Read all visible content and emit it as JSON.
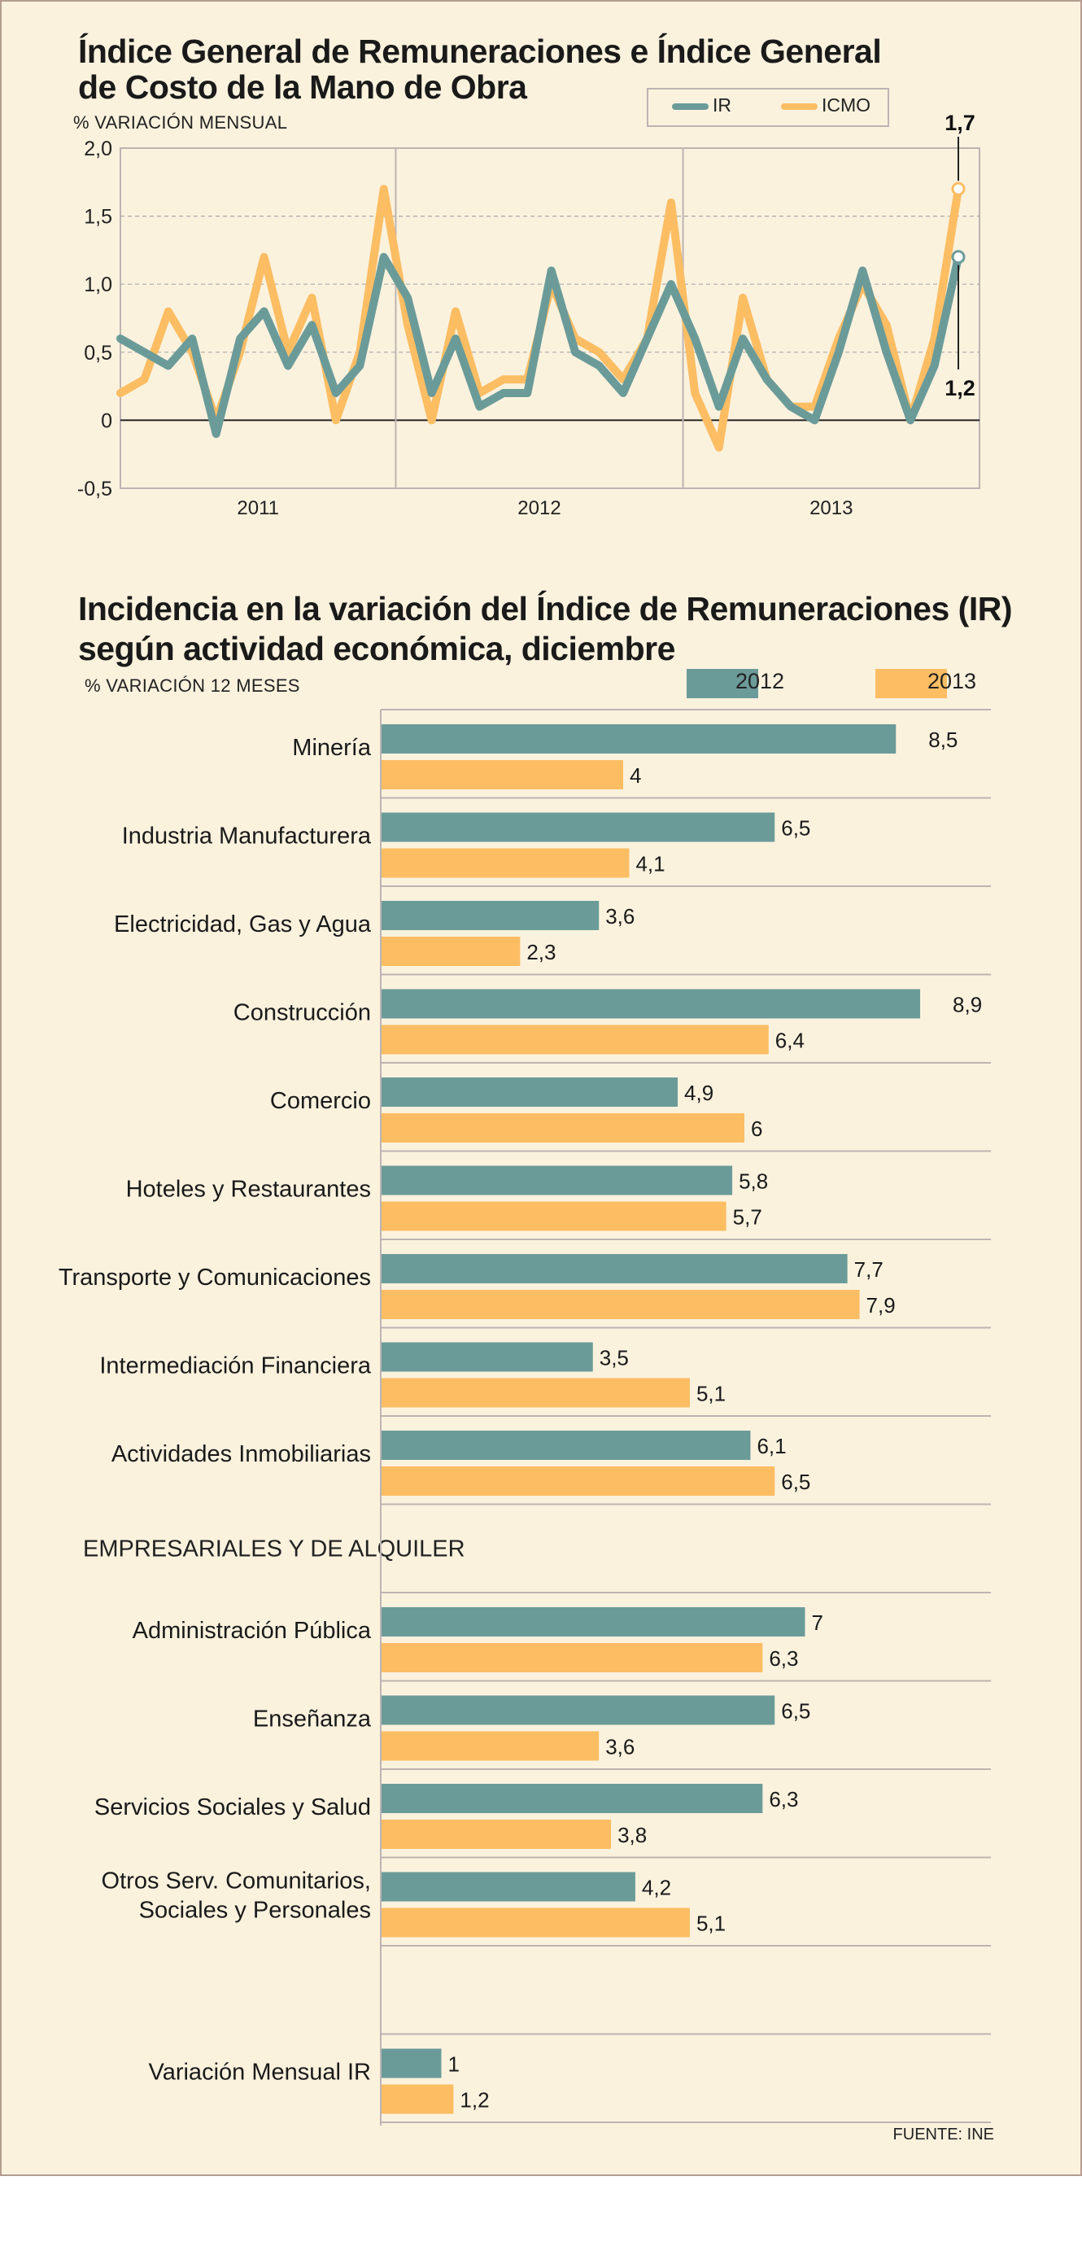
{
  "colors": {
    "ir": "#6b9b99",
    "icmo": "#fcbd63",
    "background": "#fbf2de",
    "border": "#b49d90"
  },
  "line_chart": {
    "title_line1": "Índice General de Remuneraciones e Índice General",
    "title_line2": "de Costo de la Mano de Obra",
    "ylabel": "% VARIACIÓN MENSUAL",
    "legend": {
      "ir": "IR",
      "icmo": "ICMO"
    },
    "callout_icmo": "1,7",
    "callout_ir": "1,2"
  },
  "bar_chart": {
    "title_line1": "Incidencia en la variación del Índice de Remuneraciones (IR)",
    "title_line2": "según actividad económica, diciembre",
    "ylabel": "% VARIACIÓN 12 MESES",
    "legend": {
      "s2012": "2012",
      "s2013": "2013"
    }
  },
  "source": "FUENTE: INE",
  "chart_data": [
    {
      "type": "line",
      "title": "Índice General de Remuneraciones e Índice General de Costo de la Mano de Obra",
      "ylabel": "% VARIACIÓN MENSUAL",
      "ylim": [
        -0.5,
        2.0
      ],
      "yticks": [
        -0.5,
        0,
        0.5,
        1.0,
        1.5,
        2.0
      ],
      "ytick_labels": [
        "-0,5",
        "0",
        "0,5",
        "1,0",
        "1,5",
        "2,0"
      ],
      "grid": true,
      "year_labels": [
        "2011",
        "2012",
        "2013"
      ],
      "x_count": 36,
      "series": [
        {
          "name": "IR",
          "values": [
            0.6,
            0.5,
            0.4,
            0.6,
            -0.1,
            0.6,
            0.8,
            0.4,
            0.7,
            0.2,
            0.4,
            1.2,
            0.9,
            0.2,
            0.6,
            0.1,
            0.2,
            0.2,
            1.1,
            0.5,
            0.4,
            0.2,
            0.6,
            1.0,
            0.6,
            0.1,
            0.6,
            0.3,
            0.1,
            0.0,
            0.5,
            1.1,
            0.5,
            0.0,
            0.4,
            1.2
          ]
        },
        {
          "name": "ICMO",
          "values": [
            0.2,
            0.3,
            0.8,
            0.5,
            0.0,
            0.5,
            1.2,
            0.5,
            0.9,
            0.0,
            0.5,
            1.7,
            0.7,
            0.0,
            0.8,
            0.2,
            0.3,
            0.3,
            1.0,
            0.6,
            0.5,
            0.3,
            0.6,
            1.6,
            0.2,
            -0.2,
            0.9,
            0.3,
            0.1,
            0.1,
            0.6,
            1.0,
            0.7,
            0.0,
            0.6,
            1.7
          ]
        }
      ]
    },
    {
      "type": "bar",
      "orientation": "horizontal",
      "title": "Incidencia en la variación del Índice de Remuneraciones (IR) según actividad económica, diciembre",
      "xlabel": "% VARIACIÓN 12 MESES",
      "xlim": [
        0,
        10
      ],
      "rows": [
        {
          "label": [
            "Minería"
          ],
          "s2012": 8.5,
          "s2013": 4,
          "l2012": "8,5",
          "l2013": "4"
        },
        {
          "label": [
            "Industria Manufacturera"
          ],
          "s2012": 6.5,
          "s2013": 4.1,
          "l2012": "6,5",
          "l2013": "4,1"
        },
        {
          "label": [
            "Electricidad, Gas y Agua"
          ],
          "s2012": 3.6,
          "s2013": 2.3,
          "l2012": "3,6",
          "l2013": "2,3"
        },
        {
          "label": [
            "Construcción"
          ],
          "s2012": 8.9,
          "s2013": 6.4,
          "l2012": "8,9",
          "l2013": "6,4"
        },
        {
          "label": [
            "Comercio"
          ],
          "s2012": 4.9,
          "s2013": 6,
          "l2012": "4,9",
          "l2013": "6"
        },
        {
          "label": [
            "Hoteles y Restaurantes"
          ],
          "s2012": 5.8,
          "s2013": 5.7,
          "l2012": "5,8",
          "l2013": "5,7"
        },
        {
          "label": [
            "Transporte y Comunicaciones"
          ],
          "s2012": 7.7,
          "s2013": 7.9,
          "l2012": "7,7",
          "l2013": "7,9"
        },
        {
          "label": [
            "Intermediación Financiera"
          ],
          "s2012": 3.5,
          "s2013": 5.1,
          "l2012": "3,5",
          "l2013": "5,1"
        },
        {
          "label": [
            "Actividades Inmobiliarias"
          ],
          "s2012": 6.1,
          "s2013": 6.5,
          "l2012": "6,1",
          "l2013": "6,5"
        },
        {
          "section": "EMPRESARIALES Y DE ALQUILER"
        },
        {
          "label": [
            "Administración Pública"
          ],
          "s2012": 7,
          "s2013": 6.3,
          "l2012": "7",
          "l2013": "6,3"
        },
        {
          "label": [
            "Enseñanza"
          ],
          "s2012": 6.5,
          "s2013": 3.6,
          "l2012": "6,5",
          "l2013": "3,6"
        },
        {
          "label": [
            "Servicios Sociales y Salud"
          ],
          "s2012": 6.3,
          "s2013": 3.8,
          "l2012": "6,3",
          "l2013": "3,8"
        },
        {
          "label": [
            "Otros Serv. Comunitarios,",
            "Sociales y Personales"
          ],
          "s2012": 4.2,
          "s2013": 5.1,
          "l2012": "4,2",
          "l2013": "5,1"
        },
        {
          "blank": true
        },
        {
          "label": [
            "Variación Mensual IR"
          ],
          "s2012": 1,
          "s2013": 1.2,
          "l2012": "1",
          "l2013": "1,2"
        }
      ]
    }
  ]
}
